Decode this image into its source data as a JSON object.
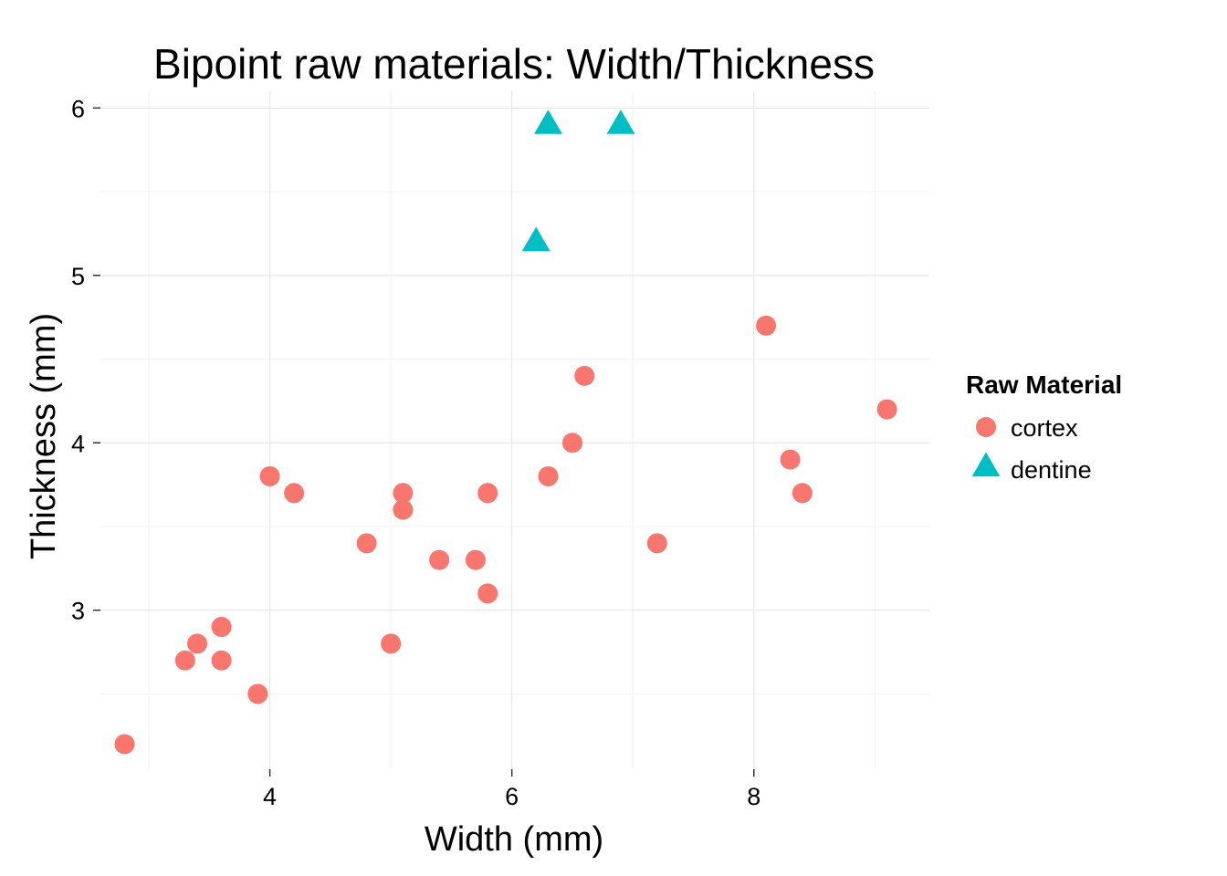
{
  "chart_data": {
    "type": "scatter",
    "title": "Bipoint raw materials: Width/Thickness",
    "xlabel": "Width (mm)",
    "ylabel": "Thickness (mm)",
    "xlim": [
      2.6,
      9.45
    ],
    "ylim": [
      2.05,
      6.1
    ],
    "x_ticks": [
      "4",
      "6",
      "8"
    ],
    "x_tick_values": [
      4,
      6,
      8
    ],
    "y_ticks": [
      "3",
      "4",
      "5",
      "6"
    ],
    "y_tick_values": [
      3,
      4,
      5,
      6
    ],
    "grid": true,
    "legend": {
      "title": "Raw Material",
      "position": "right"
    },
    "series": [
      {
        "name": "cortex",
        "marker": "circle",
        "color": "#F8766D",
        "points": [
          [
            2.8,
            2.2
          ],
          [
            3.3,
            2.7
          ],
          [
            3.4,
            2.8
          ],
          [
            3.6,
            2.9
          ],
          [
            3.6,
            2.7
          ],
          [
            3.9,
            2.5
          ],
          [
            4.0,
            3.8
          ],
          [
            4.2,
            3.7
          ],
          [
            4.8,
            3.4
          ],
          [
            5.0,
            2.8
          ],
          [
            5.1,
            3.7
          ],
          [
            5.1,
            3.6
          ],
          [
            5.4,
            3.3
          ],
          [
            5.7,
            3.3
          ],
          [
            5.8,
            3.7
          ],
          [
            5.8,
            3.1
          ],
          [
            6.3,
            3.8
          ],
          [
            6.5,
            4.0
          ],
          [
            6.6,
            4.4
          ],
          [
            7.2,
            3.4
          ],
          [
            8.1,
            4.7
          ],
          [
            8.3,
            3.9
          ],
          [
            8.4,
            3.7
          ],
          [
            9.1,
            4.2
          ]
        ]
      },
      {
        "name": "dentine",
        "marker": "triangle",
        "color": "#00BFC4",
        "points": [
          [
            6.2,
            5.2
          ],
          [
            6.3,
            5.9
          ],
          [
            6.9,
            5.9
          ]
        ]
      }
    ]
  }
}
